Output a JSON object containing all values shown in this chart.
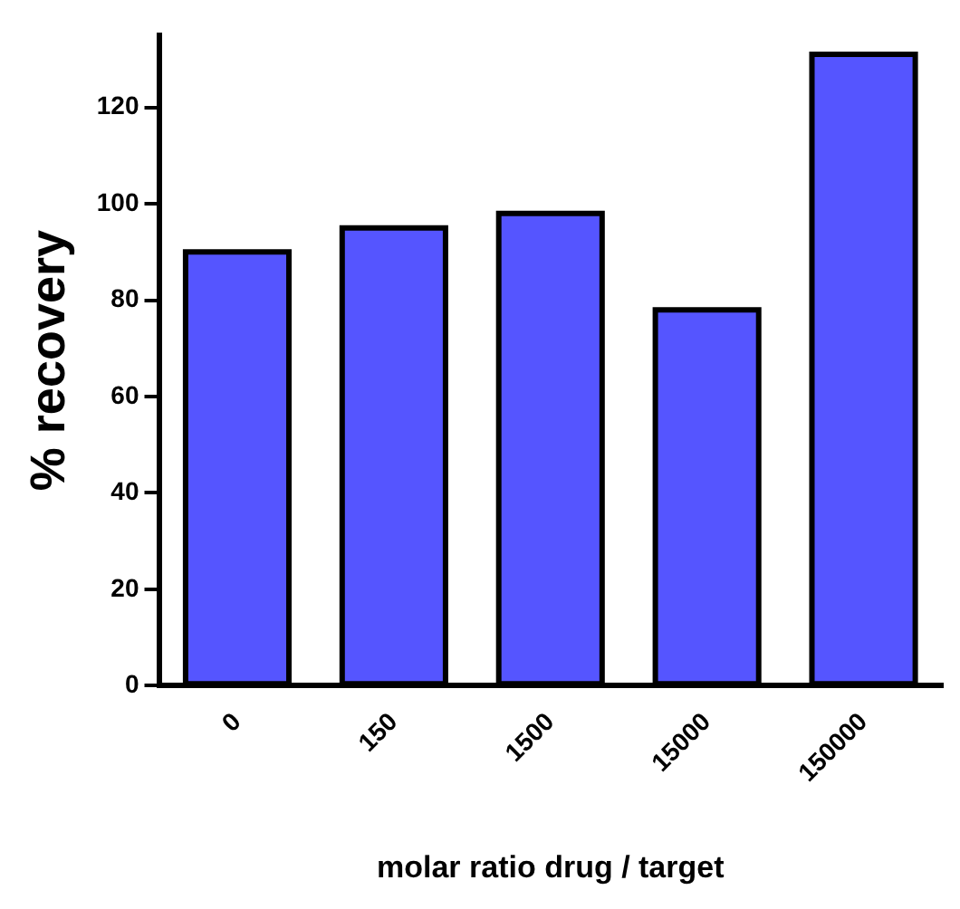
{
  "chart_data": {
    "type": "bar",
    "xlabel": "molar ratio drug / target",
    "ylabel": "% recovery",
    "categories": [
      "0",
      "150",
      "1500",
      "15000",
      "150000"
    ],
    "values": [
      90,
      95,
      98,
      78,
      131
    ],
    "color": "#5555ff",
    "ylim": [
      0,
      135
    ],
    "yticks": [
      0,
      20,
      40,
      60,
      80,
      100,
      120
    ],
    "grid": false,
    "legend": false
  }
}
